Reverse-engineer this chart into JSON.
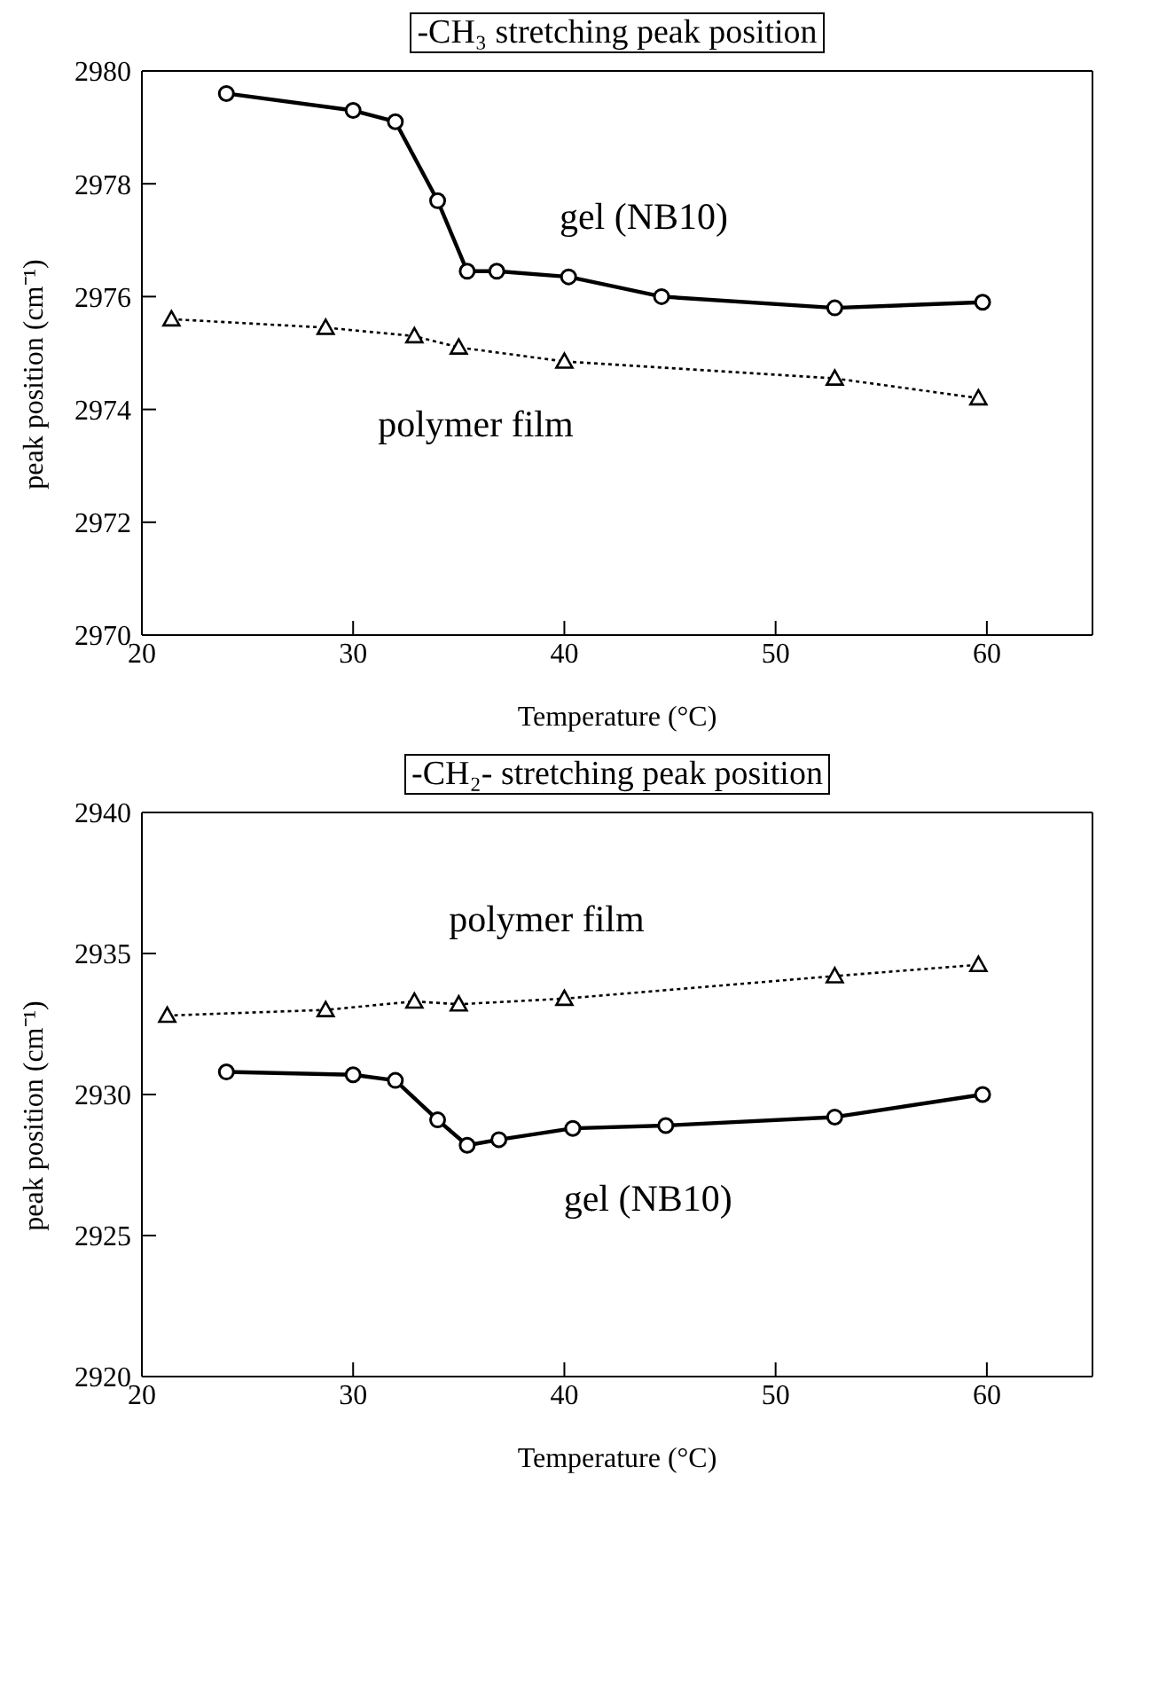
{
  "chart_data": [
    {
      "type": "line",
      "title": "-CH₃ stretching peak position",
      "xlabel": "Temperature (°C)",
      "ylabel": "peak position (cm⁻¹)",
      "xlim": [
        20,
        65
      ],
      "xticks": [
        20,
        30,
        40,
        50,
        60
      ],
      "ylim": [
        2970,
        2980
      ],
      "yticks": [
        2970,
        2972,
        2974,
        2976,
        2978,
        2980
      ],
      "series": [
        {
          "name": "gel (NB10)",
          "color": "#000000",
          "marker": "circle",
          "line_style": "solid",
          "x": [
            24,
            30,
            32,
            34,
            35.4,
            36.8,
            40.2,
            44.6,
            52.8,
            59.8
          ],
          "values": [
            2979.6,
            2979.3,
            2979.1,
            2977.7,
            2976.45,
            2976.45,
            2976.35,
            2976.0,
            2975.8,
            2975.9
          ]
        },
        {
          "name": "polymer film",
          "color": "#000000",
          "marker": "triangle",
          "line_style": "dotted",
          "x": [
            21.4,
            28.7,
            32.9,
            35,
            40,
            52.8,
            59.6
          ],
          "values": [
            2975.6,
            2975.45,
            2975.3,
            2975.1,
            2974.85,
            2974.55,
            2974.2
          ]
        }
      ]
    },
    {
      "type": "line",
      "title": "-CH₂- stretching peak position",
      "xlabel": "Temperature (°C)",
      "ylabel": "peak position (cm⁻¹)",
      "xlim": [
        20,
        65
      ],
      "xticks": [
        20,
        30,
        40,
        50,
        60
      ],
      "ylim": [
        2920,
        2940
      ],
      "yticks": [
        2920,
        2925,
        2930,
        2935,
        2940
      ],
      "series": [
        {
          "name": "gel (NB10)",
          "color": "#000000",
          "marker": "circle",
          "line_style": "solid",
          "x": [
            24,
            30,
            32,
            34,
            35.4,
            36.9,
            40.4,
            44.8,
            52.8,
            59.8
          ],
          "values": [
            2930.8,
            2930.7,
            2930.5,
            2929.1,
            2928.2,
            2928.4,
            2928.8,
            2928.9,
            2929.2,
            2930.0
          ]
        },
        {
          "name": "polymer film",
          "color": "#000000",
          "marker": "triangle",
          "line_style": "dotted",
          "x": [
            21.2,
            28.7,
            32.9,
            35,
            40,
            52.8,
            59.6
          ],
          "values": [
            2932.8,
            2933.0,
            2933.3,
            2933.2,
            2933.4,
            2934.2,
            2934.6
          ]
        }
      ]
    }
  ]
}
